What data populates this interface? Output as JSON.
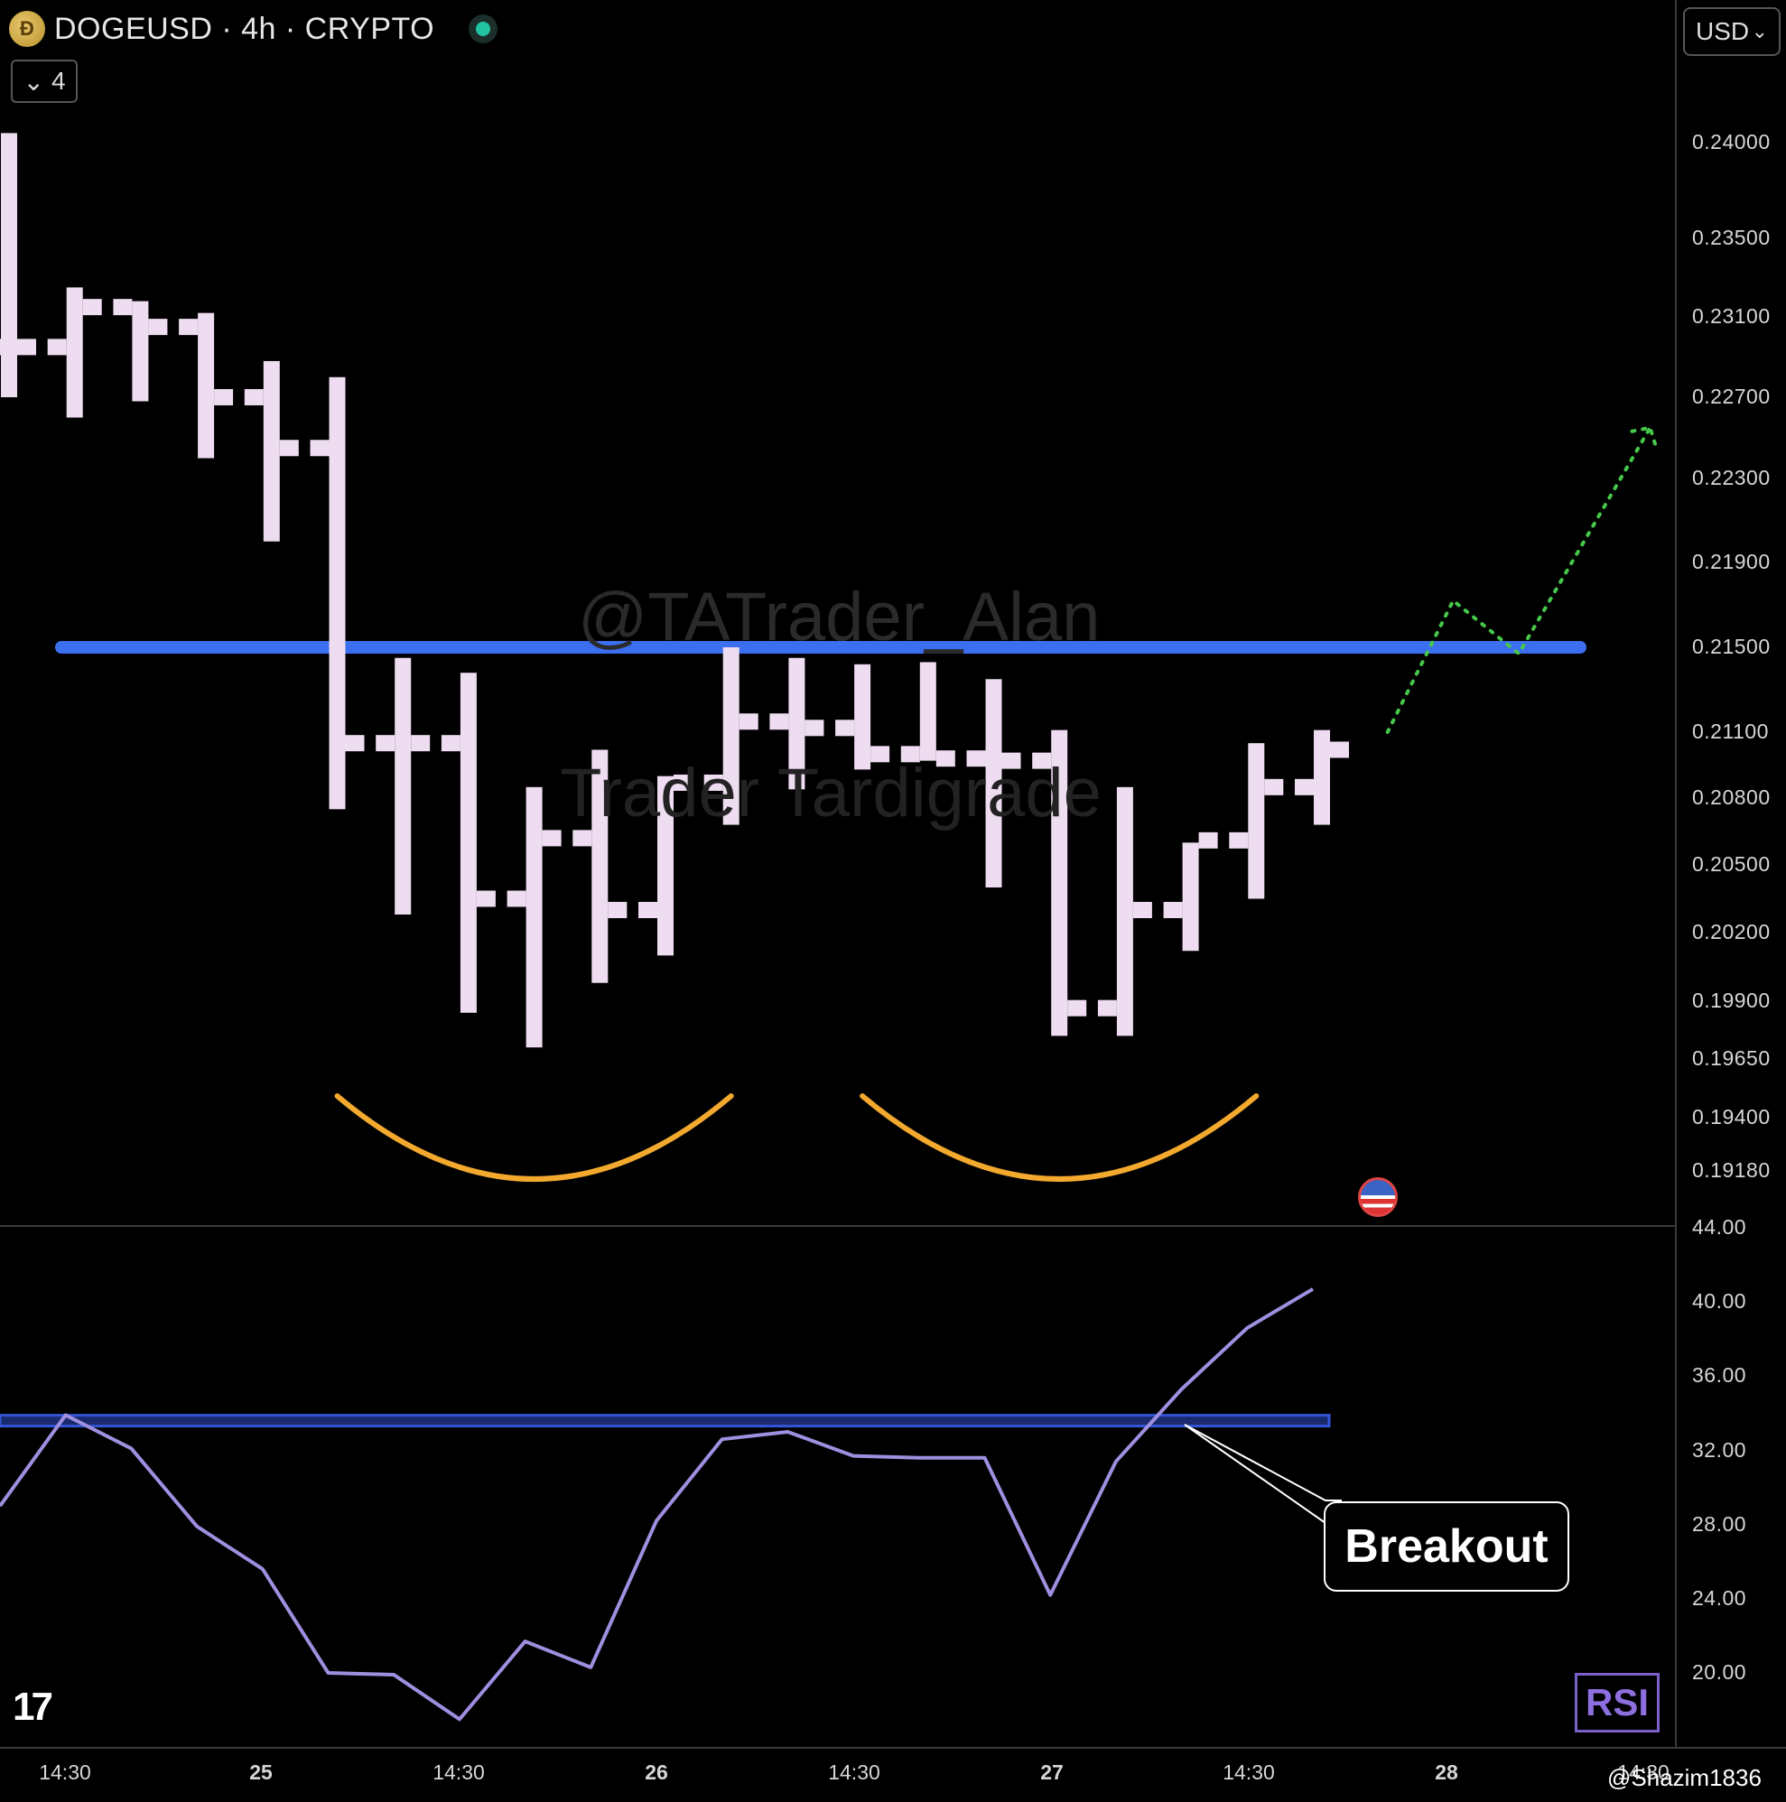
{
  "header": {
    "title": "DOGEUSD · 4h · CRYPTO",
    "indicator_count": "4",
    "currency": "USD"
  },
  "price_axis_labels": [
    "0.24000",
    "0.23500",
    "0.23100",
    "0.22700",
    "0.22300",
    "0.21900",
    "0.21500",
    "0.21100",
    "0.20800",
    "0.20500",
    "0.20200",
    "0.19900",
    "0.19650",
    "0.19400",
    "0.19180"
  ],
  "rsi_axis_labels": [
    "44.00",
    "40.00",
    "36.00",
    "32.00",
    "28.00",
    "24.00",
    "20.00"
  ],
  "time_axis_labels": [
    {
      "text": "14:30",
      "bold": false
    },
    {
      "text": "25",
      "bold": true
    },
    {
      "text": "14:30",
      "bold": false
    },
    {
      "text": "26",
      "bold": true
    },
    {
      "text": "14:30",
      "bold": false
    },
    {
      "text": "27",
      "bold": true
    },
    {
      "text": "14:30",
      "bold": false
    },
    {
      "text": "28",
      "bold": true
    },
    {
      "text": "14:30",
      "bold": false
    }
  ],
  "watermarks": [
    "@TATrader_Alan",
    "Trader Tardigrade"
  ],
  "annotation": {
    "breakout_label": "Breakout"
  },
  "rsi_badge": "RSI",
  "credit": "@Shazim1836",
  "colors": {
    "bars": "#eedcf0",
    "resistance": "#3b6ff0",
    "arc": "#f2a92e",
    "projection": "#46c84a",
    "rsi_line": "#a08fe0",
    "rsi_level": "#3355d8"
  },
  "chart_data": [
    {
      "type": "ohlc",
      "timeframe": "4h",
      "x_range": [
        0,
        25
      ],
      "y_range": [
        0.1918,
        0.24
      ],
      "bars": [
        {
          "x": 0,
          "open": 0.2295,
          "high": 0.2405,
          "low": 0.227,
          "close": 0.2295
        },
        {
          "x": 1,
          "open": 0.2295,
          "high": 0.2325,
          "low": 0.226,
          "close": 0.2315
        },
        {
          "x": 2,
          "open": 0.2315,
          "high": 0.2318,
          "low": 0.2268,
          "close": 0.2305
        },
        {
          "x": 3,
          "open": 0.2305,
          "high": 0.2312,
          "low": 0.224,
          "close": 0.227
        },
        {
          "x": 4,
          "open": 0.227,
          "high": 0.2288,
          "low": 0.22,
          "close": 0.2245
        },
        {
          "x": 5,
          "open": 0.2245,
          "high": 0.228,
          "low": 0.2075,
          "close": 0.2105
        },
        {
          "x": 6,
          "open": 0.2105,
          "high": 0.2145,
          "low": 0.2028,
          "close": 0.2105
        },
        {
          "x": 7,
          "open": 0.2105,
          "high": 0.2138,
          "low": 0.1985,
          "close": 0.2035
        },
        {
          "x": 8,
          "open": 0.2035,
          "high": 0.2085,
          "low": 0.197,
          "close": 0.2062
        },
        {
          "x": 9,
          "open": 0.2062,
          "high": 0.2102,
          "low": 0.1998,
          "close": 0.203
        },
        {
          "x": 10,
          "open": 0.203,
          "high": 0.209,
          "low": 0.201,
          "close": 0.2087
        },
        {
          "x": 11,
          "open": 0.2087,
          "high": 0.215,
          "low": 0.2068,
          "close": 0.2115
        },
        {
          "x": 12,
          "open": 0.2115,
          "high": 0.2145,
          "low": 0.2084,
          "close": 0.2112
        },
        {
          "x": 13,
          "open": 0.2112,
          "high": 0.2142,
          "low": 0.2093,
          "close": 0.21
        },
        {
          "x": 14,
          "open": 0.21,
          "high": 0.2143,
          "low": 0.2097,
          "close": 0.2098
        },
        {
          "x": 15,
          "open": 0.2098,
          "high": 0.2135,
          "low": 0.204,
          "close": 0.2097
        },
        {
          "x": 16,
          "open": 0.2097,
          "high": 0.2111,
          "low": 0.1975,
          "close": 0.1987
        },
        {
          "x": 17,
          "open": 0.1987,
          "high": 0.2085,
          "low": 0.1975,
          "close": 0.203
        },
        {
          "x": 18,
          "open": 0.203,
          "high": 0.206,
          "low": 0.2012,
          "close": 0.2061
        },
        {
          "x": 19,
          "open": 0.2061,
          "high": 0.2105,
          "low": 0.2035,
          "close": 0.2085
        },
        {
          "x": 20,
          "open": 0.2085,
          "high": 0.2111,
          "low": 0.2068,
          "close": 0.2102
        }
      ],
      "resistance_level": 0.215,
      "double_bottom_arcs": [
        {
          "from_x": 5,
          "to_x": 11
        },
        {
          "from_x": 13,
          "to_x": 19
        }
      ],
      "projection_path": [
        {
          "x": 21,
          "y": 0.211
        },
        {
          "x": 22,
          "y": 0.2172
        },
        {
          "x": 23,
          "y": 0.2147
        },
        {
          "x": 25,
          "y": 0.2255
        }
      ]
    },
    {
      "type": "line",
      "name": "RSI",
      "x_range": [
        0,
        25
      ],
      "y_range": [
        16.0,
        44.0
      ],
      "values": [
        {
          "x": 0,
          "y": 29.0
        },
        {
          "x": 1,
          "y": 33.9
        },
        {
          "x": 2,
          "y": 32.1
        },
        {
          "x": 3,
          "y": 27.9
        },
        {
          "x": 4,
          "y": 25.6
        },
        {
          "x": 5,
          "y": 20.0
        },
        {
          "x": 6,
          "y": 19.9
        },
        {
          "x": 7,
          "y": 17.5
        },
        {
          "x": 8,
          "y": 21.7
        },
        {
          "x": 9,
          "y": 20.3
        },
        {
          "x": 10,
          "y": 28.2
        },
        {
          "x": 11,
          "y": 32.6
        },
        {
          "x": 12,
          "y": 33.0
        },
        {
          "x": 13,
          "y": 31.7
        },
        {
          "x": 14,
          "y": 31.6
        },
        {
          "x": 15,
          "y": 31.6
        },
        {
          "x": 16,
          "y": 24.2
        },
        {
          "x": 17,
          "y": 31.4
        },
        {
          "x": 18,
          "y": 35.3
        },
        {
          "x": 19,
          "y": 38.6
        },
        {
          "x": 20,
          "y": 40.7
        }
      ],
      "level": 33.6,
      "level_range_x": [
        0,
        20
      ]
    }
  ]
}
